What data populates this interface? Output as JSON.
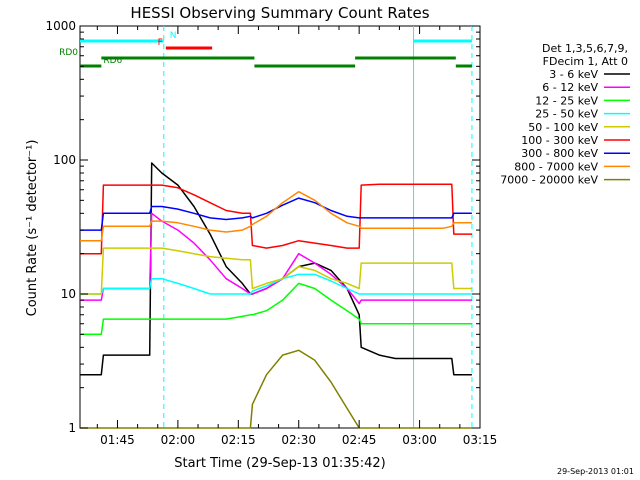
{
  "chart_data": {
    "type": "line",
    "title": "HESSI Observing Summary Count Rates",
    "xlabel": "Start Time (29-Sep-13 01:35:42)",
    "ylabel": "Count Rate (s⁻¹ detector⁻¹)",
    "yscale": "log",
    "ylim": [
      1,
      1000
    ],
    "xlim": [
      "01:35:42",
      "03:15:00"
    ],
    "x_ticks": [
      "01:45",
      "02:00",
      "02:15",
      "02:30",
      "02:45",
      "03:00",
      "03:15"
    ],
    "y_ticks": [
      "1",
      "10",
      "100",
      "1000"
    ],
    "grid": false,
    "legend_position": "right",
    "legend_header": [
      "Det 1,3,5,6,7,9,",
      "FDecim 1, Att 0"
    ],
    "footer": "29-Sep-2013 01:01",
    "x": [
      "01:35:42",
      "01:41:00",
      "01:41:30",
      "01:49:00",
      "01:53:00",
      "01:53:30",
      "01:56:00",
      "02:00:00",
      "02:04:00",
      "02:08:00",
      "02:12:00",
      "02:16:00",
      "02:18:00",
      "02:18:30",
      "02:22:00",
      "02:26:00",
      "02:30:00",
      "02:34:00",
      "02:38:00",
      "02:42:00",
      "02:45:00",
      "02:45:30",
      "02:50:00",
      "02:54:00",
      "02:58:00",
      "03:02:00",
      "03:06:00",
      "03:08:00",
      "03:08:30",
      "03:12:00",
      "03:13:00"
    ],
    "series": [
      {
        "name": "3 - 6 keV",
        "color": "#000000",
        "values": [
          2.5,
          2.5,
          3.5,
          3.5,
          3.5,
          95,
          80,
          65,
          45,
          28,
          16,
          12,
          10,
          10,
          11,
          13,
          16,
          17,
          15,
          11,
          7,
          4,
          3.5,
          3.3,
          3.3,
          3.3,
          3.3,
          3.3,
          2.5,
          2.5,
          2.5
        ]
      },
      {
        "name": "6 - 12 keV",
        "color": "#ff00ff",
        "values": [
          9,
          9,
          11,
          11,
          11,
          40,
          35,
          30,
          24,
          18,
          13,
          11,
          10,
          10,
          11,
          13,
          20,
          17,
          14,
          11,
          8.5,
          9,
          9,
          9,
          9,
          9,
          9,
          9,
          9,
          9,
          9
        ]
      },
      {
        "name": "12 - 25 keV",
        "color": "#00ff00",
        "values": [
          5,
          5,
          6.5,
          6.5,
          6.5,
          6.5,
          6.5,
          6.5,
          6.5,
          6.5,
          6.5,
          6.8,
          7,
          7,
          7.5,
          9,
          12,
          11,
          9,
          7.5,
          6.5,
          6,
          6,
          6,
          6,
          6,
          6,
          6,
          6,
          6,
          6
        ]
      },
      {
        "name": "25 - 50 keV",
        "color": "#00ffff",
        "values": [
          10,
          10,
          11,
          11,
          11,
          13,
          13,
          12,
          11,
          10,
          10,
          10,
          10,
          10.5,
          11.5,
          13,
          14,
          14,
          12.5,
          11,
          10,
          10,
          10,
          10,
          10,
          10,
          10,
          10,
          10,
          10,
          10
        ]
      },
      {
        "name": "50 - 100 keV",
        "color": "#cccc00",
        "values": [
          10,
          10,
          22,
          22,
          22,
          22,
          22,
          21,
          20,
          19,
          18.5,
          18,
          18,
          11,
          12,
          13,
          16,
          15,
          13,
          12,
          11,
          17,
          17,
          17,
          17,
          17,
          17,
          17,
          11,
          11,
          11
        ]
      },
      {
        "name": "100 - 300 keV",
        "color": "#ff0000",
        "values": [
          20,
          20,
          65,
          65,
          65,
          65,
          65,
          62,
          55,
          48,
          42,
          40,
          40,
          23,
          22,
          23,
          25,
          24,
          23,
          22,
          22,
          65,
          66,
          66,
          66,
          66,
          66,
          66,
          28,
          28,
          28
        ]
      },
      {
        "name": "300 - 800 keV",
        "color": "#0000ff",
        "values": [
          30,
          30,
          40,
          40,
          40,
          45,
          45,
          43,
          40,
          37,
          36,
          37,
          38,
          37,
          40,
          46,
          52,
          48,
          42,
          38,
          37,
          37,
          37,
          37,
          37,
          37,
          37,
          37,
          40,
          40,
          40
        ]
      },
      {
        "name": "800 - 7000 keV",
        "color": "#ff8800",
        "values": [
          25,
          25,
          32,
          32,
          32,
          35,
          35,
          34,
          32,
          30,
          29,
          30,
          32,
          33,
          38,
          48,
          58,
          50,
          40,
          34,
          32,
          31,
          31,
          31,
          31,
          31,
          31,
          32,
          34,
          34,
          34
        ]
      },
      {
        "name": "7000 - 20000 keV",
        "color": "#808000",
        "values": [
          1,
          1,
          1,
          1,
          1,
          1,
          1,
          1,
          1,
          1,
          1,
          1,
          1,
          1.5,
          2.5,
          3.5,
          3.8,
          3.2,
          2.2,
          1.4,
          1,
          1,
          1,
          1,
          1,
          1,
          1,
          1,
          1,
          1,
          1
        ]
      }
    ],
    "flags": [
      {
        "label": "N",
        "color": "#00ffff",
        "segments": [
          [
            "01:35:42",
            "01:56:30"
          ],
          [
            "02:58:30",
            "03:13:00"
          ]
        ]
      },
      {
        "label": "F",
        "color": "#ff0000",
        "segments": [
          [
            "01:57:00",
            "02:08:30"
          ]
        ]
      },
      {
        "label": "RD0",
        "color": "#008000",
        "segments": [
          [
            "01:41:00",
            "02:19:00"
          ],
          [
            "02:44:00",
            "03:09:00"
          ]
        ]
      },
      {
        "label": "RD6",
        "color": "#008000",
        "segments": [
          [
            "01:35:42",
            "01:41:00"
          ],
          [
            "02:19:00",
            "02:44:00"
          ],
          [
            "03:09:00",
            "03:13:00"
          ]
        ]
      }
    ],
    "markers": [
      {
        "time": "01:56:30",
        "color": "#00ffff",
        "style": "dashed"
      },
      {
        "time": "02:58:30",
        "color": "#00ffff",
        "style": "solid"
      },
      {
        "time": "03:13:00",
        "color": "#00ffff",
        "style": "dashed"
      }
    ]
  }
}
